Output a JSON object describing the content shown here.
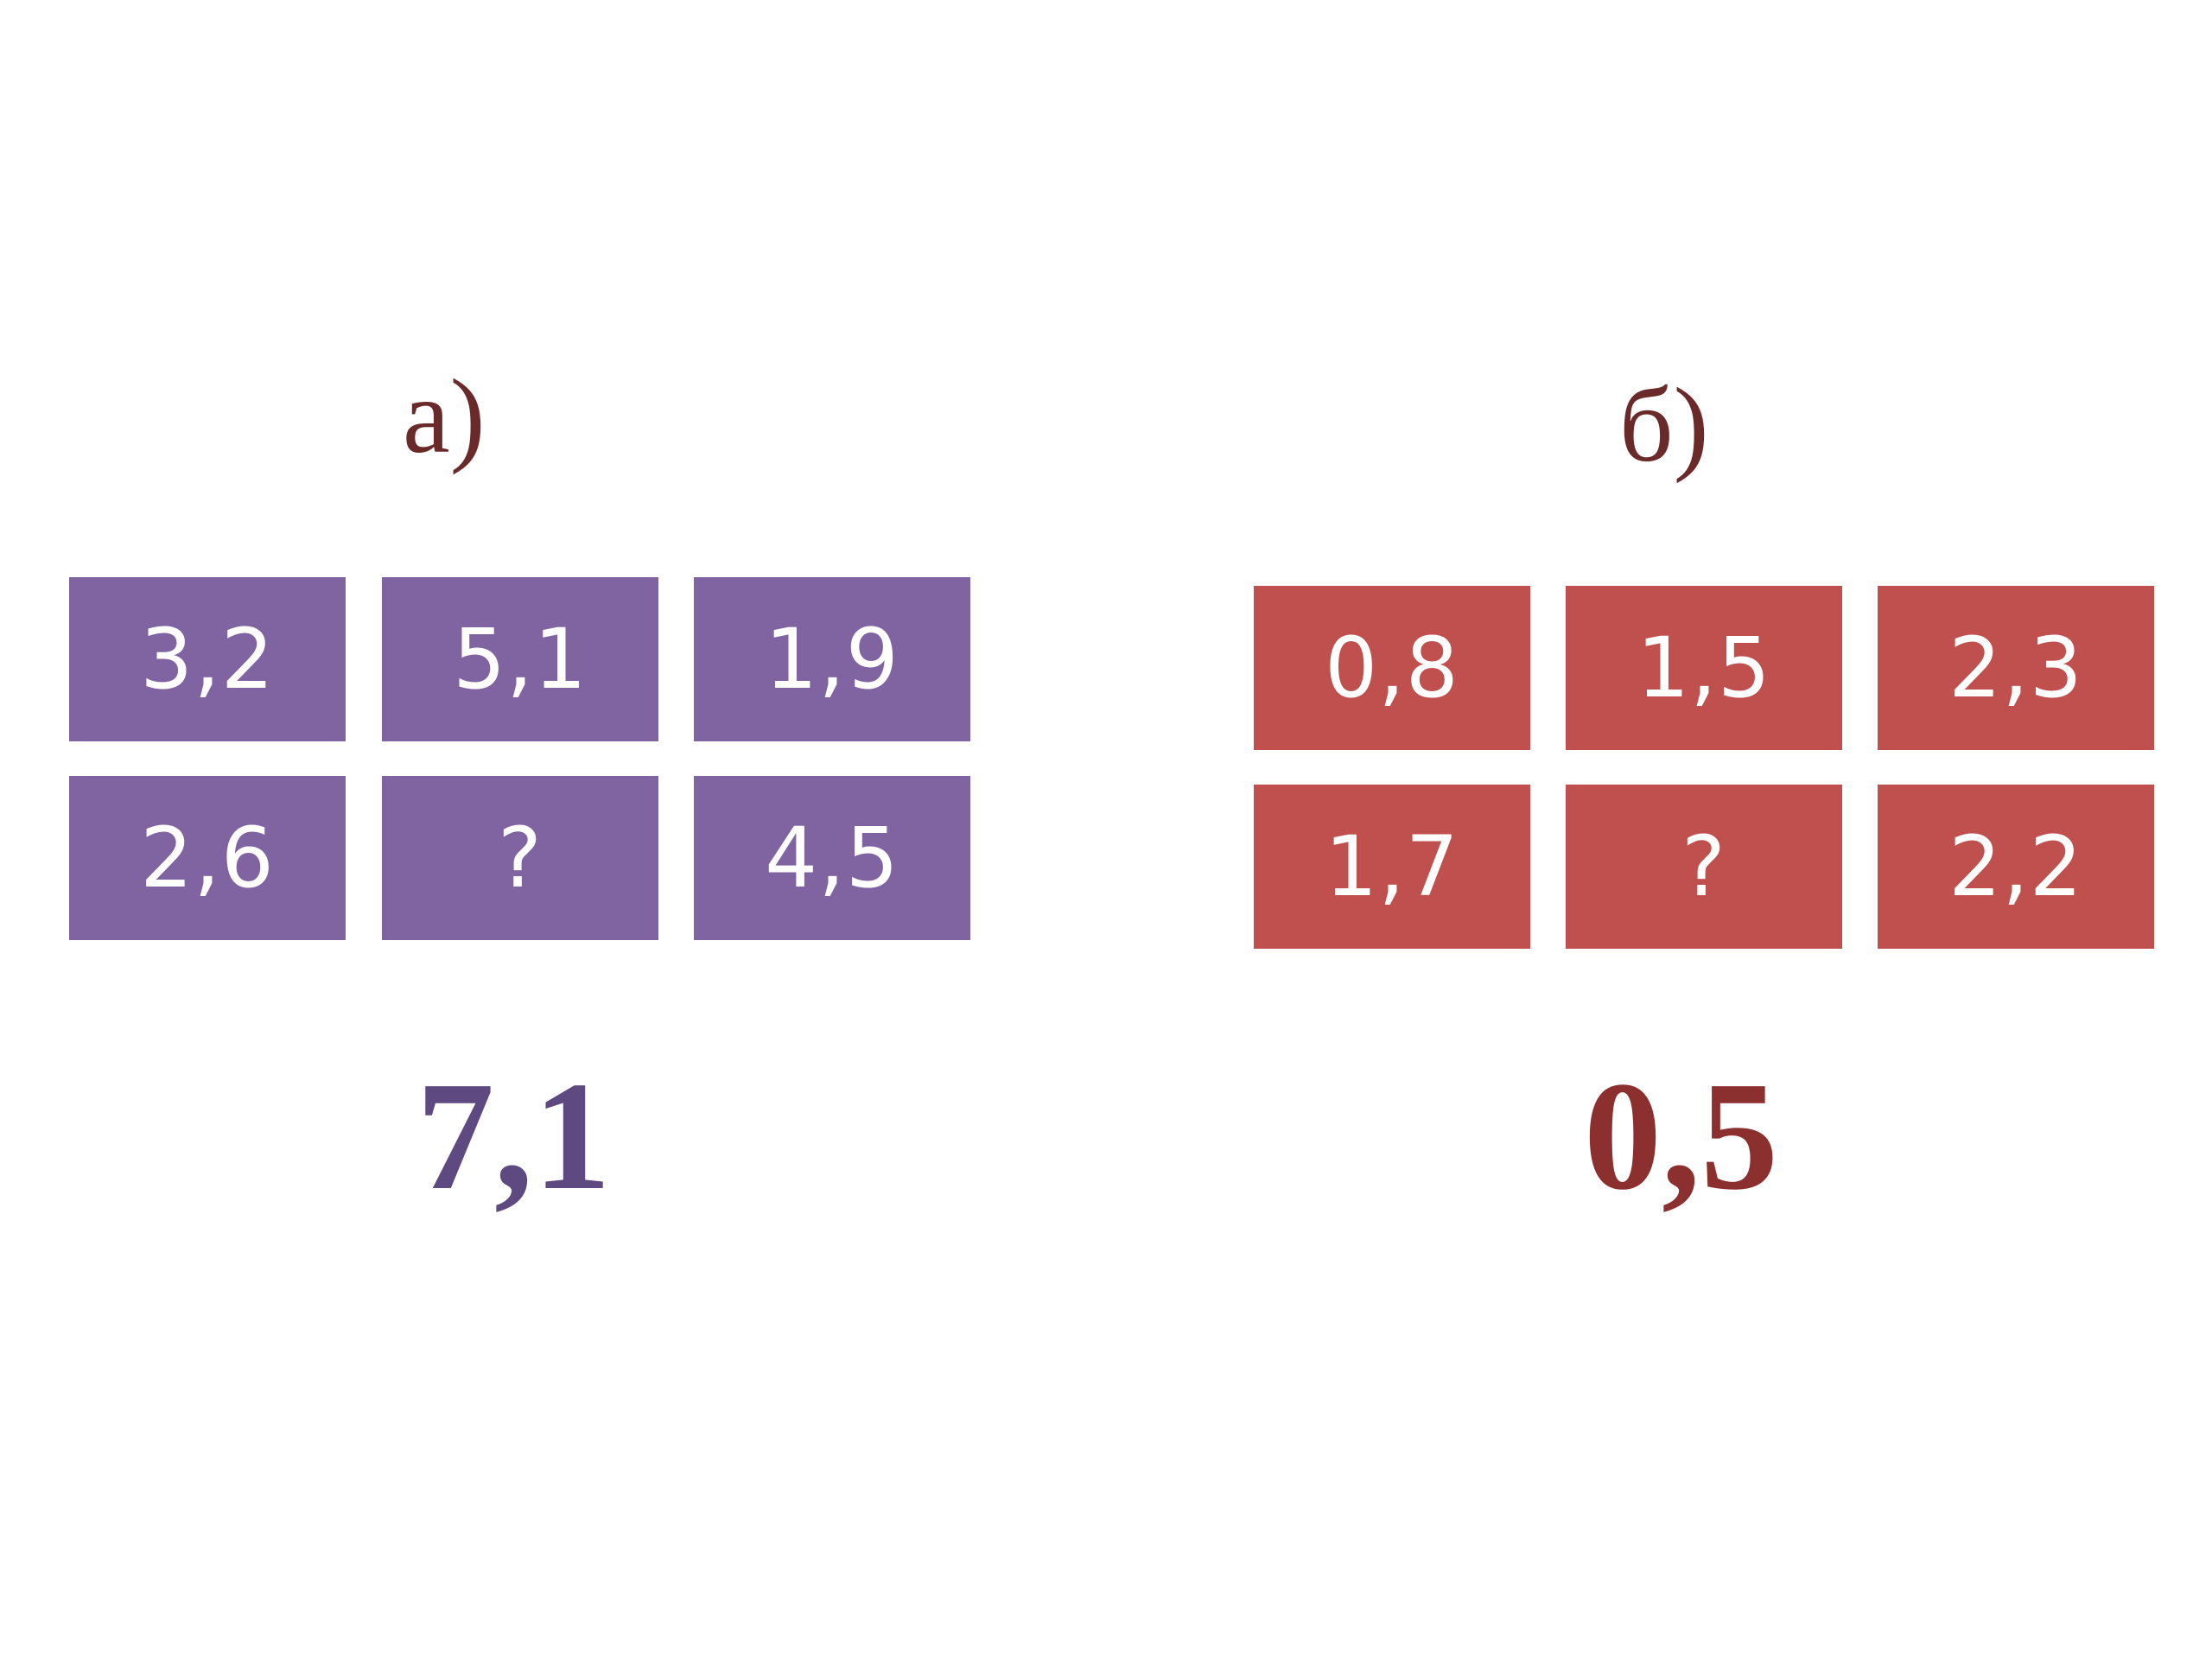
{
  "panels": [
    {
      "label": "а)",
      "label_color": "#6b2a2a",
      "tile_color": "#8064a2",
      "tiles": [
        "3,2",
        "5,1",
        "1,9",
        "2,6",
        "?",
        "4,5"
      ],
      "result": "7,1",
      "result_color": "#5e4a80"
    },
    {
      "label": "б)",
      "label_color": "#6b2a2a",
      "tile_color": "#c0504d",
      "tiles": [
        "0,8",
        "1,5",
        "2,3",
        "1,7",
        "?",
        "2,2"
      ],
      "result": "0,5",
      "result_color": "#8b2f2f"
    }
  ]
}
